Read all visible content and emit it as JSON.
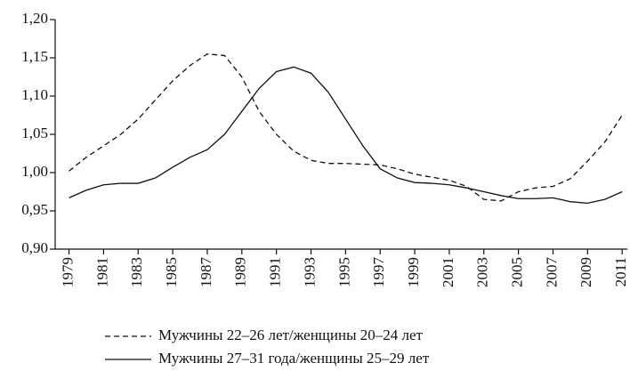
{
  "chart_data": {
    "type": "line",
    "x": [
      1979,
      1980,
      1981,
      1982,
      1983,
      1984,
      1985,
      1986,
      1987,
      1988,
      1989,
      1990,
      1991,
      1992,
      1993,
      1994,
      1995,
      1996,
      1997,
      1998,
      1999,
      2000,
      2001,
      2002,
      2003,
      2004,
      2005,
      2006,
      2007,
      2008,
      2009,
      2010,
      2011
    ],
    "xlim": [
      1978.2,
      2011.3
    ],
    "xticks": [
      1979,
      1981,
      1983,
      1985,
      1987,
      1989,
      1991,
      1993,
      1995,
      1997,
      1999,
      2001,
      2003,
      2005,
      2007,
      2009,
      2011
    ],
    "ylim": [
      0.9,
      1.2
    ],
    "yticks": [
      {
        "value": 0.9,
        "label": "0,90"
      },
      {
        "value": 0.95,
        "label": "0,95"
      },
      {
        "value": 1.0,
        "label": "1,00"
      },
      {
        "value": 1.05,
        "label": "1,05"
      },
      {
        "value": 1.1,
        "label": "1,10"
      },
      {
        "value": 1.15,
        "label": "1,15"
      },
      {
        "value": 1.2,
        "label": "1,20"
      }
    ],
    "grid": false,
    "legend": "bottom",
    "series": [
      {
        "name": "Мужчины 22–26 лет/женщины 20–24 лет",
        "color": "#111111",
        "dash": "dashed",
        "values": [
          1.002,
          1.02,
          1.035,
          1.05,
          1.07,
          1.095,
          1.12,
          1.14,
          1.155,
          1.153,
          1.125,
          1.08,
          1.05,
          1.028,
          1.016,
          1.012,
          1.012,
          1.011,
          1.01,
          1.005,
          0.998,
          0.994,
          0.99,
          0.982,
          0.965,
          0.963,
          0.975,
          0.98,
          0.982,
          0.992,
          1.015,
          1.04,
          1.075
        ]
      },
      {
        "name": "Мужчины 27–31 года/женщины 25–29 лет",
        "color": "#111111",
        "dash": "solid",
        "values": [
          0.967,
          0.977,
          0.984,
          0.986,
          0.986,
          0.993,
          1.007,
          1.02,
          1.03,
          1.05,
          1.08,
          1.11,
          1.132,
          1.138,
          1.13,
          1.105,
          1.07,
          1.035,
          1.005,
          0.993,
          0.987,
          0.986,
          0.984,
          0.98,
          0.975,
          0.97,
          0.966,
          0.966,
          0.967,
          0.962,
          0.96,
          0.965,
          0.975
        ]
      }
    ]
  }
}
